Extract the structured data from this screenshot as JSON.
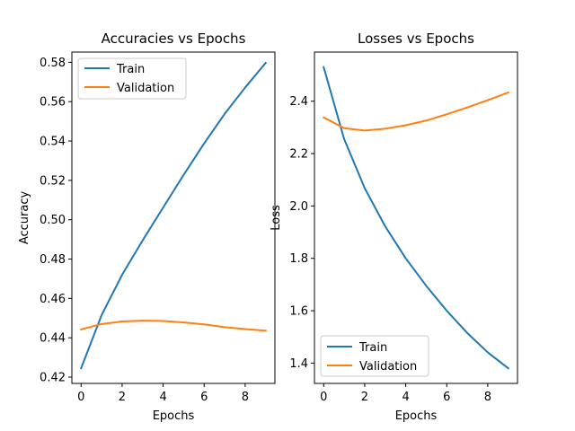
{
  "chart_data": [
    {
      "type": "line",
      "title": "Accuracies vs Epochs",
      "xlabel": "Epochs",
      "ylabel": "Accuracy",
      "xlim": [
        -0.45,
        9.45
      ],
      "ylim": [
        0.4168,
        0.5852
      ],
      "xticks": [
        0,
        2,
        4,
        6,
        8
      ],
      "yticks": [
        0.42,
        0.44,
        0.46,
        0.48,
        0.5,
        0.52,
        0.54,
        0.56,
        0.58
      ],
      "ytick_labels": [
        "0.42",
        "0.44",
        "0.46",
        "0.48",
        "0.50",
        "0.52",
        "0.54",
        "0.56",
        "0.58"
      ],
      "legend_position": "upper-left",
      "grid": false,
      "x": [
        0,
        1,
        2,
        3,
        4,
        5,
        6,
        7,
        8,
        9
      ],
      "series": [
        {
          "name": "Train",
          "color": "#1f77b4",
          "values": [
            0.4245,
            0.4515,
            0.472,
            0.4895,
            0.5062,
            0.5228,
            0.5388,
            0.5538,
            0.5672,
            0.5797
          ]
        },
        {
          "name": "Validation",
          "color": "#ff7f0e",
          "values": [
            0.4442,
            0.447,
            0.4483,
            0.4487,
            0.4485,
            0.4478,
            0.4468,
            0.4454,
            0.4444,
            0.4436
          ]
        }
      ]
    },
    {
      "type": "line",
      "title": "Losses vs Epochs",
      "xlabel": "Epochs",
      "ylabel": "Loss",
      "xlim": [
        -0.45,
        9.45
      ],
      "ylim": [
        1.3225,
        2.5875
      ],
      "xticks": [
        0,
        2,
        4,
        6,
        8
      ],
      "yticks": [
        1.4,
        1.6,
        1.8,
        2.0,
        2.2,
        2.4
      ],
      "ytick_labels": [
        "1.4",
        "1.6",
        "1.8",
        "2.0",
        "2.2",
        "2.4"
      ],
      "legend_position": "lower-left",
      "grid": false,
      "x": [
        0,
        1,
        2,
        3,
        4,
        5,
        6,
        7,
        8,
        9
      ],
      "series": [
        {
          "name": "Train",
          "color": "#1f77b4",
          "values": [
            2.53,
            2.255,
            2.068,
            1.922,
            1.8,
            1.695,
            1.6,
            1.515,
            1.441,
            1.38
          ]
        },
        {
          "name": "Validation",
          "color": "#ff7f0e",
          "values": [
            2.338,
            2.297,
            2.288,
            2.295,
            2.308,
            2.326,
            2.35,
            2.376,
            2.404,
            2.433
          ]
        }
      ]
    }
  ]
}
